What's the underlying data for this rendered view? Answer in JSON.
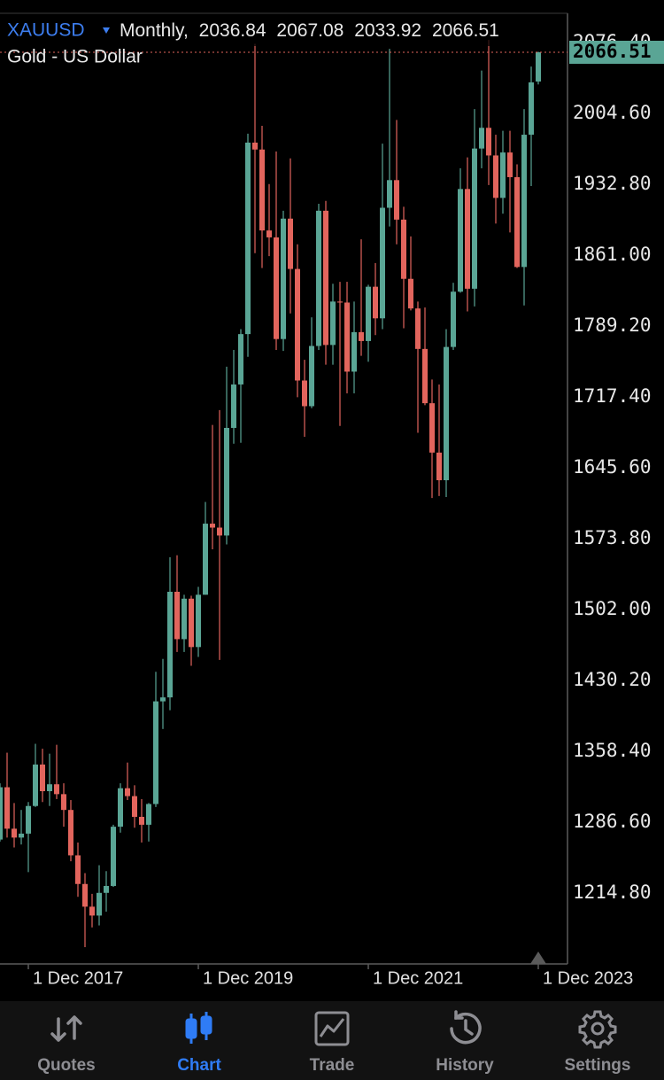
{
  "chart_data": {
    "type": "candlestick",
    "symbol": "XAUUSD",
    "timeframe": "Monthly,",
    "subtitle": "Gold - US Dollar",
    "up_color": "#5aa595",
    "down_color": "#e2655d",
    "grid": true,
    "categories": [
      null,
      null,
      null,
      null,
      "1 Dec 2017",
      null,
      null,
      null,
      null,
      null,
      null,
      null,
      null,
      null,
      null,
      null,
      null,
      null,
      null,
      null,
      null,
      null,
      null,
      null,
      null,
      null,
      null,
      null,
      "1 Dec 2019",
      null,
      null,
      null,
      null,
      null,
      null,
      null,
      null,
      null,
      null,
      null,
      null,
      null,
      null,
      null,
      null,
      null,
      null,
      null,
      null,
      null,
      null,
      null,
      "1 Dec 2021",
      null,
      null,
      null,
      null,
      null,
      null,
      null,
      null,
      null,
      null,
      null,
      null,
      null,
      null,
      null,
      null,
      null,
      null,
      null,
      null,
      null,
      null,
      null,
      "1 Dec 2023"
    ],
    "open": [
      1269,
      1322,
      1280,
      1271,
      1275,
      1303,
      1345,
      1318,
      1325,
      1315,
      1299,
      1253,
      1224,
      1201,
      1192,
      1215,
      1222,
      1282,
      1321,
      1313,
      1292,
      1284,
      1305,
      1409,
      1413,
      1520,
      1472,
      1513,
      1464,
      1517,
      1589,
      1585,
      1577,
      1686,
      1730,
      1781,
      1975,
      1968,
      1886,
      1879,
      1776,
      1898,
      1847,
      1734,
      1708,
      1769,
      1906,
      1770,
      1814,
      1813,
      1743,
      1783,
      1774,
      1829,
      1797,
      1909,
      1937,
      1897,
      1837,
      1807,
      1766,
      1711,
      1661,
      1633,
      1768,
      1824,
      1928,
      1827,
      1969,
      1990,
      1962,
      1919,
      1965,
      1940,
      1849,
      1983,
      2036.84
    ],
    "high": [
      1326,
      1357,
      1306,
      1299,
      1307,
      1366,
      1361,
      1356,
      1365,
      1326,
      1309,
      1266,
      1235,
      1214,
      1243,
      1237,
      1284,
      1326,
      1347,
      1324,
      1310,
      1306,
      1439,
      1452,
      1555,
      1557,
      1517,
      1516,
      1525,
      1611,
      1689,
      1704,
      1748,
      1765,
      1786,
      1984,
      2075,
      1992,
      1933,
      1966,
      1906,
      1959,
      1872,
      1755,
      1798,
      1913,
      1916,
      1832,
      1834,
      1834,
      1814,
      1877,
      1831,
      1853,
      1974,
      2070,
      1998,
      1910,
      1880,
      1814,
      1808,
      1735,
      1730,
      1786,
      1833,
      1949,
      1960,
      2009,
      2048,
      2079,
      1983,
      1987,
      1987,
      1953,
      2009,
      2052,
      2067.08
    ],
    "low": [
      1267,
      1271,
      1261,
      1264,
      1236,
      1302,
      1307,
      1303,
      1310,
      1282,
      1247,
      1211,
      1160,
      1180,
      1182,
      1196,
      1221,
      1276,
      1309,
      1281,
      1266,
      1267,
      1302,
      1381,
      1400,
      1459,
      1459,
      1445,
      1454,
      1517,
      1563,
      1451,
      1568,
      1670,
      1671,
      1758,
      1863,
      1848,
      1860,
      1765,
      1764,
      1802,
      1717,
      1677,
      1706,
      1765,
      1750,
      1750,
      1688,
      1721,
      1721,
      1759,
      1753,
      1780,
      1786,
      1890,
      1872,
      1787,
      1805,
      1681,
      1709,
      1615,
      1617,
      1616,
      1765,
      1823,
      1804,
      1809,
      1949,
      1932,
      1893,
      1903,
      1884,
      1848,
      1810,
      1931,
      2033.92
    ],
    "close": [
      1322,
      1280,
      1271,
      1275,
      1303,
      1345,
      1318,
      1325,
      1315,
      1299,
      1253,
      1224,
      1201,
      1192,
      1215,
      1222,
      1282,
      1321,
      1313,
      1292,
      1284,
      1305,
      1409,
      1413,
      1520,
      1472,
      1513,
      1464,
      1517,
      1589,
      1585,
      1577,
      1686,
      1730,
      1781,
      1975,
      1968,
      1886,
      1879,
      1776,
      1898,
      1847,
      1734,
      1708,
      1769,
      1906,
      1770,
      1814,
      1813,
      1743,
      1783,
      1774,
      1829,
      1797,
      1909,
      1937,
      1897,
      1837,
      1807,
      1766,
      1711,
      1661,
      1633,
      1768,
      1824,
      1928,
      1827,
      1969,
      1990,
      1962,
      1919,
      1965,
      1940,
      1849,
      1983,
      2036,
      2066.51
    ],
    "ylim": [
      1143,
      2106
    ],
    "yticks": [
      {
        "value": 1214.8,
        "label": "1214.80"
      },
      {
        "value": 1286.6,
        "label": "1286.60"
      },
      {
        "value": 1358.4,
        "label": "1358.40"
      },
      {
        "value": 1430.2,
        "label": "1430.20"
      },
      {
        "value": 1502.0,
        "label": "1502.00"
      },
      {
        "value": 1573.8,
        "label": "1573.80"
      },
      {
        "value": 1645.6,
        "label": "1645.60"
      },
      {
        "value": 1717.4,
        "label": "1717.40"
      },
      {
        "value": 1789.2,
        "label": "1789.20"
      },
      {
        "value": 1861.0,
        "label": "1861.00"
      },
      {
        "value": 1932.8,
        "label": "1932.80"
      },
      {
        "value": 2004.6,
        "label": "2004.60"
      },
      {
        "value": 2076.4,
        "label": "2076.40"
      }
    ]
  },
  "tab_bar": {
    "tabs": [
      "Quotes",
      "Chart",
      "Trade",
      "History",
      "Settings"
    ],
    "active": 1
  }
}
